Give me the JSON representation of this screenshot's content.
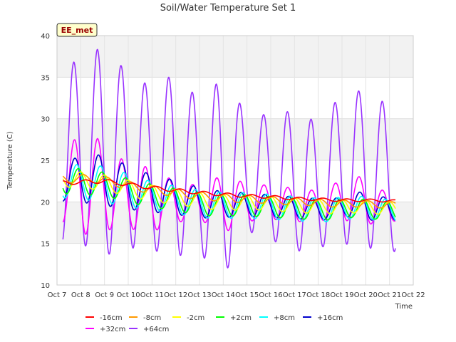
{
  "chart_data": {
    "type": "line",
    "title": "Soil/Water Temperature Set 1",
    "xlabel": "Time",
    "ylabel": "Temperature (C)",
    "badge": "EE_met",
    "ylim": [
      10,
      40
    ],
    "yticks": [
      10,
      15,
      20,
      25,
      30,
      35,
      40
    ],
    "xlim": [
      7,
      22
    ],
    "xticks": [
      {
        "v": 7,
        "label": "Oct 7"
      },
      {
        "v": 8,
        "label": "Oct 8"
      },
      {
        "v": 9,
        "label": "Oct 9"
      },
      {
        "v": 10,
        "label": "Oct 10"
      },
      {
        "v": 11,
        "label": "Oct 11"
      },
      {
        "v": 12,
        "label": "Oct 12"
      },
      {
        "v": 13,
        "label": "Oct 13"
      },
      {
        "v": 14,
        "label": "Oct 14"
      },
      {
        "v": 15,
        "label": "Oct 15"
      },
      {
        "v": 16,
        "label": "Oct 16"
      },
      {
        "v": 17,
        "label": "Oct 17"
      },
      {
        "v": 18,
        "label": "Oct 18"
      },
      {
        "v": 19,
        "label": "Oct 19"
      },
      {
        "v": 20,
        "label": "Oct 20"
      },
      {
        "v": 21,
        "label": "Oct 21"
      },
      {
        "v": 22,
        "label": "Oct 22"
      }
    ],
    "x_start": 7.25,
    "x_end": 21.25,
    "phase": 0.25,
    "series": [
      {
        "name": "-16cm",
        "color": "#ff0000",
        "trend": [
          [
            7.25,
            22.3
          ],
          [
            9.0,
            22.5
          ],
          [
            10.0,
            22.1
          ],
          [
            11.0,
            21.7
          ],
          [
            12.0,
            21.4
          ],
          [
            13.0,
            21.1
          ],
          [
            14.0,
            20.9
          ],
          [
            15.0,
            20.7
          ],
          [
            16.0,
            20.6
          ],
          [
            17.0,
            20.4
          ],
          [
            18.0,
            20.3
          ],
          [
            19.0,
            20.2
          ],
          [
            20.0,
            20.2
          ],
          [
            21.25,
            20.1
          ]
        ],
        "amp": [
          [
            7.25,
            0.25
          ],
          [
            21.25,
            0.15
          ]
        ],
        "lag": 0.45
      },
      {
        "name": "-8cm",
        "color": "#ff9900",
        "trend": [
          [
            7.25,
            22.8
          ],
          [
            8.5,
            22.8
          ],
          [
            9.5,
            22.3
          ],
          [
            10.5,
            21.7
          ],
          [
            11.5,
            21.3
          ],
          [
            12.5,
            20.9
          ],
          [
            13.5,
            20.6
          ],
          [
            14.5,
            20.4
          ],
          [
            15.5,
            20.3
          ],
          [
            16.5,
            20.1
          ],
          [
            17.5,
            20.0
          ],
          [
            18.5,
            19.8
          ],
          [
            19.5,
            19.8
          ],
          [
            21.25,
            19.6
          ]
        ],
        "amp": [
          [
            7.25,
            0.5
          ],
          [
            21.25,
            0.4
          ]
        ],
        "lag": 0.35
      },
      {
        "name": "-2cm",
        "color": "#ffff00",
        "trend": [
          [
            7.25,
            22.8
          ],
          [
            8.5,
            22.5
          ],
          [
            9.5,
            22.0
          ],
          [
            10.5,
            21.3
          ],
          [
            11.5,
            20.8
          ],
          [
            12.5,
            20.4
          ],
          [
            13.5,
            20.0
          ],
          [
            14.5,
            19.9
          ],
          [
            15.5,
            19.9
          ],
          [
            16.5,
            19.7
          ],
          [
            17.5,
            19.5
          ],
          [
            18.5,
            19.4
          ],
          [
            19.5,
            19.5
          ],
          [
            21.25,
            19.2
          ]
        ],
        "amp": [
          [
            7.25,
            1.0
          ],
          [
            21.25,
            0.8
          ]
        ],
        "lag": 0.25
      },
      {
        "name": "+2cm",
        "color": "#00ff00",
        "trend": [
          [
            7.25,
            22.6
          ],
          [
            8.5,
            22.3
          ],
          [
            9.5,
            21.8
          ],
          [
            10.5,
            21.0
          ],
          [
            11.5,
            20.5
          ],
          [
            12.5,
            20.0
          ],
          [
            13.5,
            19.6
          ],
          [
            14.5,
            19.6
          ],
          [
            15.5,
            19.5
          ],
          [
            16.5,
            19.3
          ],
          [
            17.5,
            19.1
          ],
          [
            18.5,
            19.0
          ],
          [
            19.5,
            19.3
          ],
          [
            21.25,
            18.8
          ]
        ],
        "amp": [
          [
            7.25,
            1.6
          ],
          [
            10.0,
            1.4
          ],
          [
            21.25,
            1.1
          ]
        ],
        "lag": 0.15
      },
      {
        "name": "+8cm",
        "color": "#00ffff",
        "trend": [
          [
            7.25,
            22.5
          ],
          [
            8.5,
            22.3
          ],
          [
            9.5,
            21.8
          ],
          [
            10.5,
            21.0
          ],
          [
            11.5,
            20.5
          ],
          [
            12.5,
            20.0
          ],
          [
            13.5,
            19.6
          ],
          [
            14.5,
            19.6
          ],
          [
            15.5,
            19.5
          ],
          [
            16.5,
            19.3
          ],
          [
            17.5,
            19.1
          ],
          [
            18.5,
            19.0
          ],
          [
            19.5,
            19.4
          ],
          [
            21.25,
            18.9
          ]
        ],
        "amp": [
          [
            7.25,
            2.0
          ],
          [
            9.0,
            2.2
          ],
          [
            11.0,
            1.7
          ],
          [
            21.25,
            1.3
          ]
        ],
        "lag": 0.08
      },
      {
        "name": "+16cm",
        "color": "#0000cc",
        "trend": [
          [
            7.25,
            22.5
          ],
          [
            8.5,
            22.8
          ],
          [
            9.5,
            22.2
          ],
          [
            10.5,
            21.3
          ],
          [
            11.5,
            20.8
          ],
          [
            12.5,
            20.2
          ],
          [
            13.5,
            19.7
          ],
          [
            14.5,
            19.7
          ],
          [
            15.5,
            19.6
          ],
          [
            16.5,
            19.4
          ],
          [
            17.5,
            19.2
          ],
          [
            18.5,
            19.1
          ],
          [
            19.5,
            19.7
          ],
          [
            21.25,
            19.0
          ]
        ],
        "amp": [
          [
            7.25,
            2.4
          ],
          [
            8.5,
            3.0
          ],
          [
            9.0,
            3.0
          ],
          [
            10.5,
            2.4
          ],
          [
            12.5,
            1.9
          ],
          [
            15.0,
            1.4
          ],
          [
            19.0,
            1.2
          ],
          [
            20.0,
            1.7
          ],
          [
            21.25,
            1.2
          ]
        ],
        "lag": 0.0
      },
      {
        "name": "+32cm",
        "color": "#ff00ff",
        "trend": [
          [
            7.25,
            21.5
          ],
          [
            8.5,
            22.5
          ],
          [
            9.5,
            21.0
          ],
          [
            10.5,
            20.5
          ],
          [
            11.5,
            20.0
          ],
          [
            12.5,
            20.0
          ],
          [
            13.5,
            19.8
          ],
          [
            14.5,
            19.8
          ],
          [
            15.5,
            20.0
          ],
          [
            16.5,
            19.8
          ],
          [
            17.5,
            19.5
          ],
          [
            18.5,
            19.8
          ],
          [
            19.5,
            20.5
          ],
          [
            21.25,
            19.0
          ]
        ],
        "amp": [
          [
            7.25,
            4.0
          ],
          [
            8.0,
            6.5
          ],
          [
            9.0,
            5.0
          ],
          [
            10.0,
            4.0
          ],
          [
            11.0,
            3.8
          ],
          [
            12.0,
            2.5
          ],
          [
            13.0,
            2.0
          ],
          [
            14.0,
            3.5
          ],
          [
            15.0,
            2.3
          ],
          [
            16.0,
            2.0
          ],
          [
            17.0,
            2.0
          ],
          [
            18.0,
            1.8
          ],
          [
            19.0,
            2.5
          ],
          [
            20.0,
            2.8
          ],
          [
            21.25,
            1.3
          ]
        ],
        "lag": -0.03
      },
      {
        "name": "+64cm",
        "color": "#9933ff",
        "trend": [
          [
            7.25,
            25.0
          ],
          [
            8.0,
            26.5
          ],
          [
            9.0,
            26.0
          ],
          [
            10.0,
            25.0
          ],
          [
            11.0,
            24.0
          ],
          [
            12.0,
            24.5
          ],
          [
            13.0,
            23.0
          ],
          [
            14.0,
            23.0
          ],
          [
            15.0,
            23.5
          ],
          [
            16.0,
            23.0
          ],
          [
            17.0,
            22.5
          ],
          [
            18.0,
            22.0
          ],
          [
            19.0,
            24.0
          ],
          [
            20.0,
            24.0
          ],
          [
            21.25,
            22.5
          ]
        ],
        "amp": [
          [
            7.25,
            10.0
          ],
          [
            8.0,
            11.5
          ],
          [
            9.0,
            12.5
          ],
          [
            10.0,
            10.5
          ],
          [
            11.0,
            9.8
          ],
          [
            12.0,
            11.0
          ],
          [
            13.0,
            9.2
          ],
          [
            14.0,
            12.0
          ],
          [
            15.0,
            7.0
          ],
          [
            16.0,
            7.5
          ],
          [
            17.0,
            8.5
          ],
          [
            18.0,
            7.5
          ],
          [
            19.0,
            9.0
          ],
          [
            20.0,
            9.5
          ],
          [
            21.25,
            8.5
          ]
        ],
        "lag": -0.05
      }
    ]
  }
}
